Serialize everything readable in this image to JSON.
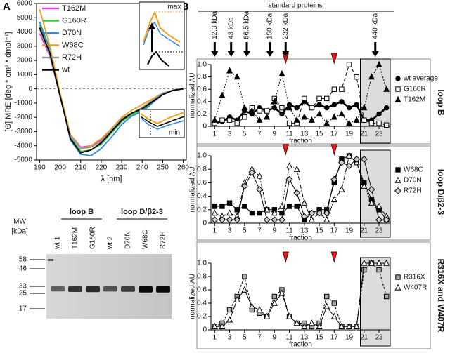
{
  "chart_data": [
    {
      "type": "line",
      "panel": "A",
      "xlabel": "λ [nm]",
      "ylabel": "[Θ] MRE [deg * cm² * dmol⁻¹]",
      "x": [
        190,
        195,
        200,
        205,
        210,
        215,
        220,
        225,
        230,
        235,
        240,
        245,
        250,
        255,
        260
      ],
      "xlim": [
        188.5,
        261.5
      ],
      "xticks": [
        190,
        200,
        210,
        220,
        230,
        240,
        250,
        260
      ],
      "ylim": [
        -5000,
        6000
      ],
      "yticks": [
        -5000,
        -4000,
        -3000,
        -2000,
        -1000,
        0,
        1000,
        2000,
        3000,
        4000,
        5000,
        6000
      ],
      "annotations": [
        "max",
        "min"
      ],
      "series": [
        {
          "name": "T162M",
          "color": "#e040e0",
          "values": [
            3900,
            2300,
            -500,
            -3200,
            -4100,
            -4000,
            -3600,
            -2900,
            -2100,
            -1700,
            -1400,
            -800,
            -300,
            -100,
            0
          ]
        },
        {
          "name": "G160R",
          "color": "#33cc33",
          "values": [
            4500,
            2600,
            -500,
            -3400,
            -4400,
            -4300,
            -3900,
            -3100,
            -2300,
            -1800,
            -1500,
            -900,
            -400,
            -100,
            0
          ]
        },
        {
          "name": "D70N",
          "color": "#3388dd",
          "values": [
            4700,
            2800,
            -400,
            -3600,
            -4600,
            -4700,
            -4200,
            -3400,
            -2500,
            -1900,
            -1600,
            -1000,
            -400,
            -100,
            0
          ]
        },
        {
          "name": "W68C",
          "color": "#f0a020",
          "values": [
            5600,
            3000,
            -300,
            -3200,
            -4200,
            -4000,
            -3500,
            -2800,
            -2000,
            -1500,
            -1100,
            -700,
            -300,
            -100,
            0
          ]
        },
        {
          "name": "R72H",
          "color": "#999999",
          "values": [
            4200,
            2400,
            -600,
            -3300,
            -4200,
            -4100,
            -3700,
            -2900,
            -2100,
            -1700,
            -1300,
            -800,
            -300,
            -100,
            0
          ]
        },
        {
          "name": "wt",
          "color": "#000000",
          "values": [
            4300,
            2500,
            -500,
            -3500,
            -4500,
            -4300,
            -3800,
            -3000,
            -2200,
            -1700,
            -1400,
            -900,
            -400,
            -100,
            0
          ]
        }
      ]
    },
    {
      "type": "line",
      "panel": "B",
      "header": "standard proteins",
      "side_label": "loop B",
      "standards": [
        {
          "label": "12.3 kDa",
          "x": 1
        },
        {
          "label": "43 kDa",
          "x": 3.2
        },
        {
          "label": "66.5 kDa",
          "x": 5.3
        },
        {
          "label": "150 kDa",
          "x": 8.4
        },
        {
          "label": "232 kDa",
          "x": 10.5
        },
        {
          "label": "440 kDa",
          "x": 22.5
        }
      ],
      "xlabel": "fraction",
      "ylabel": "normalized AU",
      "x": [
        1,
        2,
        3,
        4,
        5,
        6,
        7,
        8,
        9,
        10,
        11,
        12,
        13,
        14,
        15,
        16,
        17,
        18,
        19,
        20,
        21,
        22,
        23,
        24
      ],
      "xlim": [
        0.5,
        24.5
      ],
      "xticks": [
        1,
        3,
        5,
        7,
        9,
        11,
        13,
        15,
        17,
        19,
        21,
        23
      ],
      "ylim": [
        0,
        1
      ],
      "yticks": [
        0,
        0.2,
        0.4,
        0.6,
        0.8,
        {
          "value": 1,
          "label": "1.0"
        }
      ],
      "markers": [
        10.5,
        17
      ],
      "shaded": [
        20.5,
        24.5
      ],
      "series": [
        {
          "name": "wt average",
          "color": "#000000",
          "marker": "circle",
          "fill": "#000000",
          "width": 2.5,
          "values": [
            0.05,
            0.08,
            0.15,
            0.1,
            0.25,
            0.2,
            0.3,
            0.25,
            0.3,
            0.2,
            0.35,
            0.3,
            0.4,
            0.3,
            0.35,
            0.3,
            0.35,
            0.4,
            0.3,
            0.35,
            0.1,
            0.1,
            0.2,
            0.3
          ]
        },
        {
          "name": "G160R",
          "color": "#000000",
          "marker": "square",
          "fill": "#ffffff",
          "dash": "5,3",
          "values": [
            0.05,
            0.1,
            0.1,
            0.05,
            0.15,
            0.3,
            0.25,
            0.25,
            0.45,
            0.3,
            0.05,
            0.05,
            0.45,
            0.3,
            0.45,
            0.45,
            0.6,
            0.6,
            1,
            0.8,
            0.1,
            0.05,
            0.05,
            0.02
          ]
        },
        {
          "name": "T162M",
          "color": "#000000",
          "marker": "triangle",
          "fill": "#000000",
          "dash": "2,2",
          "values": [
            0.1,
            0.5,
            0.9,
            0.8,
            0.3,
            0.25,
            0.1,
            0.15,
            0.4,
            0.85,
            0.3,
            0.1,
            0.15,
            0.1,
            0.2,
            0.05,
            0.15,
            0.2,
            0.05,
            0.1,
            0.3,
            0.8,
            1,
            0.6
          ]
        }
      ]
    },
    {
      "type": "line",
      "side_label": "loop D/β2-3",
      "xlabel": "fraction",
      "ylabel": "normalized AU",
      "x": [
        1,
        2,
        3,
        4,
        5,
        6,
        7,
        8,
        9,
        10,
        11,
        12,
        13,
        14,
        15,
        16,
        17,
        18,
        19,
        20,
        21,
        22,
        23,
        24
      ],
      "xlim": [
        0.5,
        24.5
      ],
      "xticks": [
        1,
        3,
        5,
        7,
        9,
        11,
        13,
        15,
        17,
        19,
        21,
        23
      ],
      "ylim": [
        0,
        1
      ],
      "yticks": [
        0,
        0.2,
        0.4,
        0.6,
        0.8,
        {
          "value": 1,
          "label": "1.0"
        }
      ],
      "markers": [
        10.5,
        17
      ],
      "shaded": [
        20.5,
        24.5
      ],
      "series": [
        {
          "name": "W68C",
          "color": "#000000",
          "marker": "square",
          "fill": "#000000",
          "values": [
            0.25,
            0.25,
            0.3,
            0.2,
            0.25,
            0.15,
            0.15,
            0.2,
            0.2,
            0.15,
            0.25,
            0.25,
            0.05,
            0.15,
            0.2,
            0.2,
            0.6,
            0.95,
            1,
            0.9,
            0.6,
            0.35,
            0.2,
            0.05
          ]
        },
        {
          "name": "D70N",
          "color": "#000000",
          "marker": "triangle",
          "fill": "#ffffff",
          "dash": "6,2,2,2",
          "values": [
            0.15,
            0.1,
            0.15,
            0.1,
            0.6,
            0.8,
            0.7,
            0.2,
            0.15,
            0.25,
            0.85,
            0.8,
            0.3,
            0.05,
            0.15,
            0.05,
            0.35,
            0.5,
            1,
            0.9,
            0.55,
            0.3,
            0.25,
            0.1
          ]
        },
        {
          "name": "R72H",
          "color": "#000000",
          "marker": "diamond",
          "fill": "#cccccc",
          "values": [
            0.05,
            0.05,
            0.05,
            0.05,
            0.55,
            0.75,
            0.5,
            0.05,
            0.05,
            0.05,
            0.65,
            0.45,
            0.1,
            0.15,
            0.15,
            0.15,
            0.65,
            0.9,
            0.85,
            0.95,
            0.95,
            0.5,
            0.05,
            0.05
          ]
        }
      ]
    },
    {
      "type": "line",
      "side_label": "R316X and W407R",
      "xlabel": "fraction",
      "ylabel": "normalized AU",
      "x": [
        1,
        2,
        3,
        4,
        5,
        6,
        7,
        8,
        9,
        10,
        11,
        12,
        13,
        14,
        15,
        16,
        17,
        18,
        19,
        20,
        21,
        22,
        23,
        24
      ],
      "xlim": [
        0.5,
        24.5
      ],
      "xticks": [
        1,
        3,
        5,
        7,
        9,
        11,
        13,
        15,
        17,
        19,
        21,
        23
      ],
      "ylim": [
        0,
        1
      ],
      "yticks": [
        0,
        0.2,
        0.4,
        0.6,
        0.8,
        {
          "value": 1,
          "label": "1.0"
        }
      ],
      "markers": [
        10.5,
        17
      ],
      "shaded": [
        20.5,
        24.5
      ],
      "series": [
        {
          "name": "R316X",
          "color": "#000000",
          "marker": "square",
          "fill": "#aaaaaa",
          "dash": "3,2",
          "values": [
            0.05,
            0.1,
            0.3,
            0.5,
            0.8,
            0.3,
            0.25,
            0.2,
            0.5,
            0.6,
            0.2,
            0.1,
            0.1,
            0.05,
            0.1,
            0.5,
            0.4,
            0.05,
            0.05,
            0.05,
            0.9,
            1,
            0.9,
            0.5
          ]
        },
        {
          "name": "W407R",
          "color": "#000000",
          "marker": "triangle",
          "fill": "#ffffff",
          "values": [
            0.05,
            0.05,
            0.15,
            0.45,
            0.6,
            0.35,
            0.3,
            0.2,
            0.4,
            0.55,
            0.2,
            0.1,
            0.05,
            0.1,
            0.05,
            0.35,
            0.2,
            0.05,
            0.05,
            0.05,
            1,
            1,
            1,
            1
          ]
        }
      ]
    }
  ],
  "gel": {
    "mw_label": [
      "MW",
      "[kDa]"
    ],
    "mw_markers": [
      "58",
      "46",
      "33",
      "25",
      "17"
    ],
    "groups": [
      "loop B",
      "loop D/β2-3"
    ],
    "lanes": [
      "wt 1",
      "T162M",
      "G160R",
      "wt 2",
      "D70N",
      "W68C",
      "R72H"
    ]
  }
}
